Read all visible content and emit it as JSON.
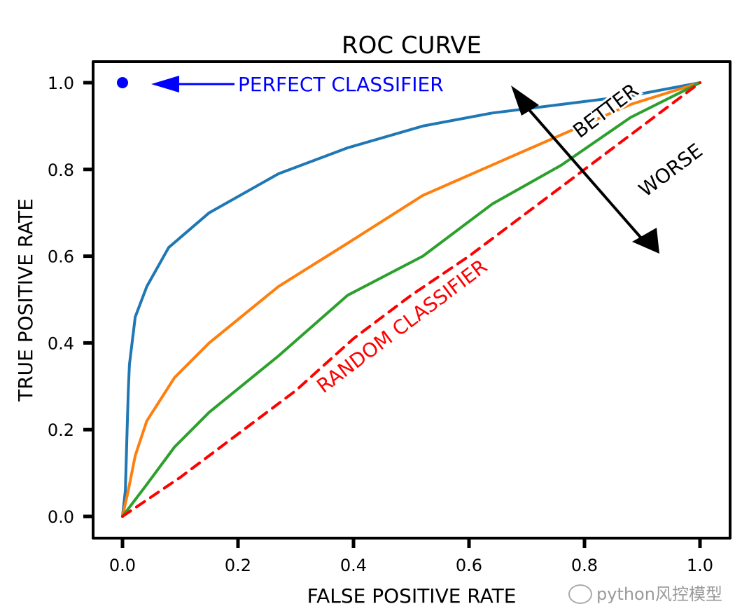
{
  "chart_data": {
    "type": "line",
    "title": "ROC CURVE",
    "xlabel": "FALSE POSITIVE RATE",
    "ylabel": "TRUE POSITIVE RATE",
    "xlim": [
      0,
      1
    ],
    "ylim": [
      0,
      1
    ],
    "xticks": [
      "0.0",
      "0.2",
      "0.4",
      "0.6",
      "0.8",
      "1.0"
    ],
    "yticks": [
      "0.0",
      "0.2",
      "0.4",
      "0.6",
      "0.8",
      "1.0"
    ],
    "grid": false,
    "style": "xkcd",
    "series": [
      {
        "color": "#1f77b4",
        "dashed": false,
        "x": [
          0,
          0.005,
          0.008,
          0.01,
          0.012,
          0.022,
          0.042,
          0.08,
          0.15,
          0.27,
          0.39,
          0.52,
          0.64,
          0.76,
          0.88,
          1.0
        ],
        "y": [
          0,
          0.06,
          0.2,
          0.29,
          0.35,
          0.46,
          0.53,
          0.62,
          0.7,
          0.79,
          0.85,
          0.9,
          0.93,
          0.95,
          0.97,
          1.0
        ]
      },
      {
        "color": "#ff7f0e",
        "dashed": false,
        "x": [
          0,
          0.01,
          0.022,
          0.042,
          0.09,
          0.15,
          0.27,
          0.39,
          0.52,
          0.64,
          0.76,
          0.88,
          1.0
        ],
        "y": [
          0,
          0.06,
          0.14,
          0.22,
          0.32,
          0.4,
          0.53,
          0.63,
          0.74,
          0.81,
          0.88,
          0.95,
          1.0
        ]
      },
      {
        "color": "#2ca02c",
        "dashed": false,
        "x": [
          0,
          0.04,
          0.09,
          0.15,
          0.27,
          0.39,
          0.52,
          0.64,
          0.76,
          0.88,
          1.0
        ],
        "y": [
          0,
          0.07,
          0.16,
          0.24,
          0.37,
          0.51,
          0.6,
          0.72,
          0.81,
          0.92,
          1.0
        ]
      },
      {
        "color": "#ff0000",
        "dashed": true,
        "x": [
          0,
          0.1,
          0.2,
          0.3,
          0.4,
          0.5,
          0.6,
          0.7,
          0.8,
          0.9,
          1.0
        ],
        "y": [
          0,
          0.09,
          0.19,
          0.29,
          0.41,
          0.51,
          0.6,
          0.7,
          0.8,
          0.9,
          1.0
        ]
      }
    ],
    "points": [
      {
        "x": 0,
        "y": 1,
        "color": "#0000ff"
      }
    ],
    "annotations": {
      "perfect": {
        "text": "PERFECT CLASSIFIER",
        "color": "#0000ff"
      },
      "random": {
        "text": "RANDOM CLASSIFIER",
        "color": "#ff0000"
      },
      "better": {
        "text": "BETTER",
        "color": "#000000"
      },
      "worse": {
        "text": "WORSE",
        "color": "#000000"
      }
    }
  },
  "watermark": {
    "text": "python风控模型",
    "icon": "wechat-icon"
  }
}
